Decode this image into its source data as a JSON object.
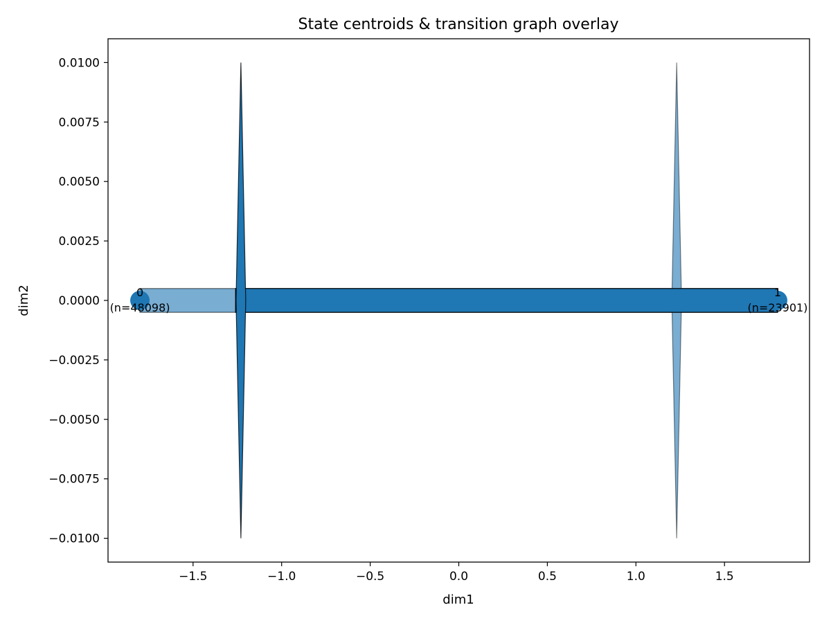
{
  "chart_data": {
    "type": "scatter",
    "title": "State centroids & transition graph overlay",
    "xlabel": "dim1",
    "ylabel": "dim2",
    "xlim": [
      -1.98,
      1.98
    ],
    "ylim": [
      -0.011,
      0.011
    ],
    "xticks": [
      -1.5,
      -1.0,
      -0.5,
      0.0,
      0.5,
      1.0,
      1.5
    ],
    "xtick_labels": [
      "−1.5",
      "−1.0",
      "−0.5",
      "0.0",
      "0.5",
      "1.0",
      "1.5"
    ],
    "yticks": [
      0.01,
      0.0075,
      0.005,
      0.0025,
      0.0,
      -0.0025,
      -0.005,
      -0.0075,
      -0.01
    ],
    "ytick_labels": [
      "0.0100",
      "0.0075",
      "0.0050",
      "0.0025",
      "0.0000",
      "−0.0025",
      "−0.0050",
      "−0.0075",
      "−0.0100"
    ],
    "grid": false,
    "colors": {
      "point": "#1f77b4",
      "edge_outline": "#000000",
      "axes": "#000000"
    },
    "states": [
      {
        "label": "0",
        "count_label": "(n=48098)",
        "x": -1.8,
        "y": 0.0
      },
      {
        "label": "1",
        "count_label": "(n=23901)",
        "x": 1.8,
        "y": 0.0
      }
    ],
    "transitions": [
      {
        "from": "0",
        "to": "1",
        "x_start": -1.8,
        "x_end": 1.8,
        "half_width": 0.0005,
        "opacity": 0.6,
        "arrowhead_x": 1.23,
        "arrowhead_half_height": 0.01
      },
      {
        "from": "1",
        "to": "0",
        "x_start": -1.26,
        "x_end": 1.8,
        "half_width": 0.0005,
        "opacity": 1.0,
        "arrowhead_x": -1.23,
        "arrowhead_half_height": 0.01
      }
    ]
  }
}
